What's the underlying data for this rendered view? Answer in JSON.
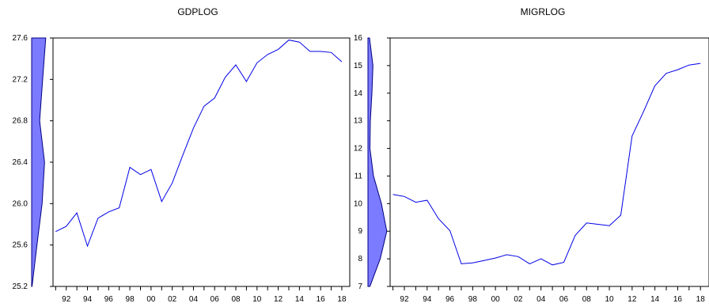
{
  "chart_data": [
    {
      "type": "line",
      "title": "GDPLOG",
      "xlabel": "",
      "ylabel": "",
      "x_tick_labels": [
        "92",
        "94",
        "96",
        "98",
        "00",
        "02",
        "04",
        "06",
        "08",
        "10",
        "12",
        "14",
        "16",
        "18"
      ],
      "x_tick_years": [
        1992,
        1994,
        1996,
        1998,
        2000,
        2002,
        2004,
        2006,
        2008,
        2010,
        2012,
        2014,
        2016,
        2018
      ],
      "ylim": [
        25.2,
        27.6
      ],
      "y_ticks": [
        25.2,
        25.6,
        26.0,
        26.4,
        26.8,
        27.2,
        27.6
      ],
      "y_tick_labels": [
        "25.2",
        "25.6",
        "26.0",
        "26.4",
        "26.8",
        "27.2",
        "27.6"
      ],
      "x": [
        1991,
        1992,
        1993,
        1994,
        1995,
        1996,
        1997,
        1998,
        1999,
        2000,
        2001,
        2002,
        2003,
        2004,
        2005,
        2006,
        2007,
        2008,
        2009,
        2010,
        2011,
        2012,
        2013,
        2014,
        2015,
        2016,
        2017,
        2018
      ],
      "values": [
        25.73,
        25.78,
        25.91,
        25.59,
        25.86,
        25.92,
        25.96,
        26.35,
        26.28,
        26.33,
        26.02,
        26.2,
        26.47,
        26.73,
        26.94,
        27.02,
        27.22,
        27.34,
        27.18,
        27.36,
        27.44,
        27.49,
        27.58,
        27.56,
        27.47,
        27.47,
        27.46,
        27.37
      ],
      "distribution": {
        "y": [
          25.2,
          25.6,
          26.0,
          26.4,
          26.8,
          27.2,
          27.6
        ],
        "width": [
          0.02,
          0.28,
          0.55,
          0.68,
          0.42,
          0.58,
          0.74
        ]
      },
      "colors": {
        "line": "#0000e6",
        "density_fill": "#7b7bff",
        "density_stroke": "#000080"
      }
    },
    {
      "type": "line",
      "title": "MIGRLOG",
      "xlabel": "",
      "ylabel": "",
      "x_tick_labels": [
        "92",
        "94",
        "96",
        "98",
        "00",
        "02",
        "04",
        "06",
        "08",
        "10",
        "12",
        "14",
        "16",
        "18"
      ],
      "x_tick_years": [
        1992,
        1994,
        1996,
        1998,
        2000,
        2002,
        2004,
        2006,
        2008,
        2010,
        2012,
        2014,
        2016,
        2018
      ],
      "ylim": [
        7,
        16
      ],
      "y_ticks": [
        7,
        8,
        9,
        10,
        11,
        12,
        13,
        14,
        15,
        16
      ],
      "y_tick_labels": [
        "7",
        "8",
        "9",
        "10",
        "11",
        "12",
        "13",
        "14",
        "15",
        "16"
      ],
      "x": [
        1991,
        1992,
        1993,
        1994,
        1995,
        1996,
        1997,
        1998,
        1999,
        2000,
        2001,
        2002,
        2003,
        2004,
        2005,
        2006,
        2007,
        2008,
        2009,
        2010,
        2011,
        2012,
        2013,
        2014,
        2015,
        2016,
        2017,
        2018
      ],
      "values": [
        10.33,
        10.26,
        10.05,
        10.12,
        9.45,
        9.02,
        7.82,
        7.85,
        7.94,
        8.03,
        8.15,
        8.08,
        7.82,
        8.0,
        7.78,
        7.87,
        8.85,
        9.3,
        9.25,
        9.2,
        9.58,
        12.45,
        13.33,
        14.27,
        14.72,
        14.85,
        15.02,
        15.08
      ],
      "distribution": {
        "y": [
          7,
          8,
          9,
          10,
          11,
          12,
          13,
          14,
          15,
          16
        ],
        "width": [
          0.1,
          0.62,
          0.95,
          0.68,
          0.28,
          0.1,
          0.12,
          0.2,
          0.25,
          0.08
        ]
      },
      "colors": {
        "line": "#0000e6",
        "density_fill": "#7b7bff",
        "density_stroke": "#000080"
      }
    }
  ]
}
